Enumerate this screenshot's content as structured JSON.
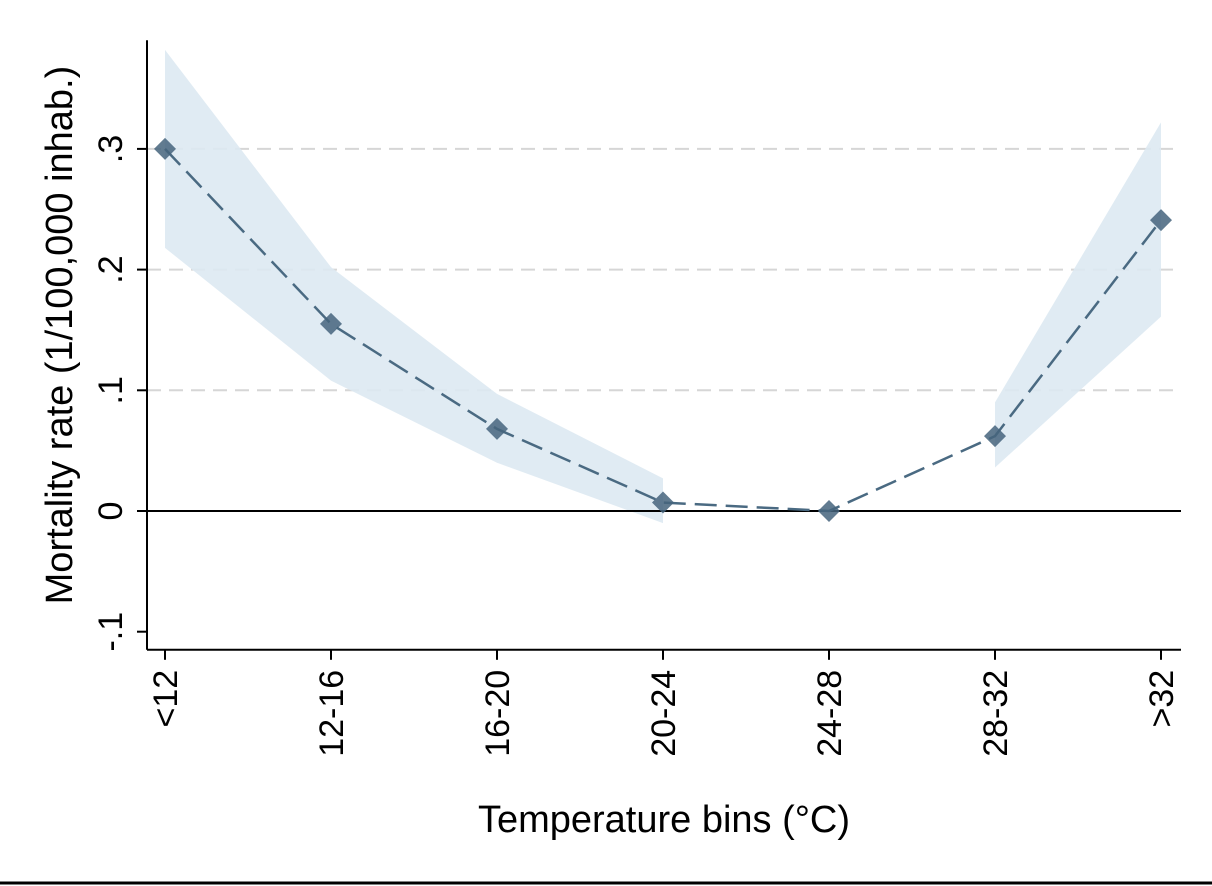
{
  "chart_data": {
    "type": "line",
    "title": "",
    "xlabel": "Temperature bins (°C)",
    "ylabel": "Mortality rate (1/100,000 inhab.)",
    "categories": [
      "<12",
      "12-16",
      "16-20",
      "20-24",
      "24-28",
      "28-32",
      ">32"
    ],
    "series": [
      {
        "values": [
          0.3,
          0.155,
          0.068,
          0.007,
          0.0,
          0.062,
          0.241
        ],
        "ci_lower": [
          0.218,
          0.108,
          0.04,
          -0.01,
          null,
          0.036,
          0.161
        ],
        "ci_upper": [
          0.382,
          0.202,
          0.097,
          0.027,
          null,
          0.09,
          0.322
        ],
        "line_style": "dashed",
        "marker": "diamond"
      }
    ],
    "yticks": [
      -0.1,
      0,
      0.1,
      0.2,
      0.3
    ],
    "ytick_labels": [
      "-.1",
      "0",
      ".1",
      ".2",
      ".3"
    ],
    "ylim": [
      -0.115,
      0.39
    ],
    "reference_line": 0,
    "grid": "horizontal-dashed",
    "colors": {
      "line": "#4a6a82",
      "marker": "#45647d",
      "ci_band": "#dde9f2",
      "grid": "#d6d6d6",
      "reference": "#000000"
    }
  }
}
